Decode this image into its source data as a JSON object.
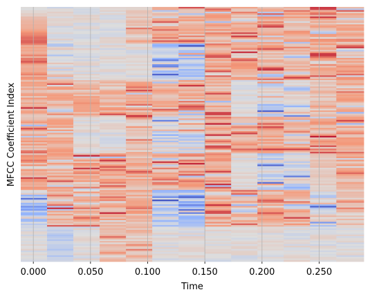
{
  "chart_data": {
    "type": "heatmap",
    "title": "",
    "xlabel": "Time",
    "ylabel": "MFCC Coefficient Index",
    "x_ticks": [
      "0.000",
      "0.050",
      "0.100",
      "0.150",
      "0.200",
      "0.250"
    ],
    "x_tick_values": [
      0.0,
      0.05,
      0.1,
      0.15,
      0.2,
      0.25
    ],
    "xlim": [
      -0.011,
      0.289
    ],
    "frame_edges": [
      -0.011,
      0.012,
      0.035,
      0.058,
      0.081,
      0.104,
      0.127,
      0.15,
      0.173,
      0.196,
      0.219,
      0.242,
      0.265,
      0.289
    ],
    "n_coefficients": 160,
    "y_ticks_shown": false,
    "grid": "vertical lines at x ticks",
    "colormap": "coolwarm",
    "colorbar": false,
    "frame_profiles": [
      [
        "rise_l",
        "sat_m",
        "warm_m",
        "warm_m",
        "hot_m",
        "cold",
        "light"
      ],
      [
        "light",
        "cool_m",
        "warm_m",
        "warm_m",
        "warm_m",
        "warm_m",
        "cool"
      ],
      [
        "light",
        "light",
        "warm_m",
        "light",
        "warm_m",
        "warm_m",
        "light"
      ],
      [
        "light",
        "light",
        "warm_m",
        "light",
        "warm_m",
        "warm_m",
        "warm_l"
      ],
      [
        "warm_l",
        "light",
        "warm_m",
        "warm_l",
        "warm_m",
        "warm_m",
        "warm_l"
      ],
      [
        "warm_m",
        "cold",
        "warm_m",
        "cool_m",
        "warm_m",
        "cold",
        "light"
      ],
      [
        "warm_m",
        "cold",
        "warm_m",
        "cool_m",
        "warm_m",
        "cold",
        "light"
      ],
      [
        "warm_m",
        "warm_m",
        "warm_m",
        "hot_m",
        "warm_m",
        "warm_m",
        "light"
      ],
      [
        "warm_m",
        "hot_m",
        "light",
        "hot_m",
        "light",
        "warm_m",
        "light"
      ],
      [
        "warm_m",
        "hot_m",
        "cool_m",
        "hot_m",
        "cool_m",
        "warm_m",
        "light"
      ],
      [
        "warm_m",
        "warm_m",
        "cool_m",
        "warm_m",
        "cool_m",
        "warm_m",
        "light"
      ],
      [
        "warm_m",
        "hot_m",
        "warm_l",
        "hot_m",
        "warm_l",
        "cool_m",
        "light"
      ],
      [
        "warm_m",
        "warm_m",
        "warm_m",
        "warm_m",
        "warm_m",
        "warm_l",
        "light"
      ]
    ]
  }
}
